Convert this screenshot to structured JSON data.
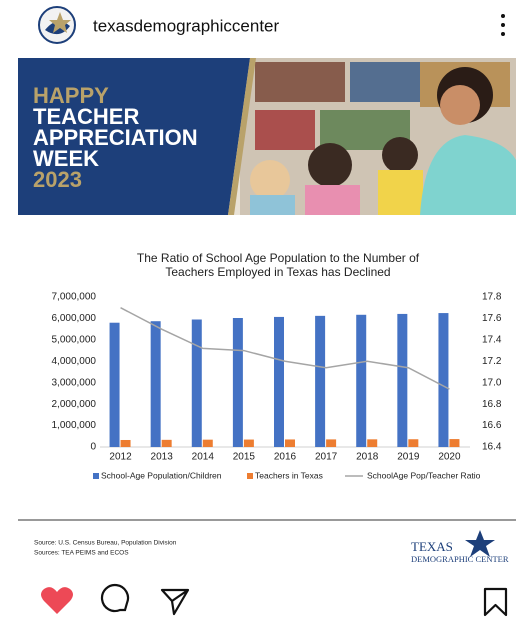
{
  "header": {
    "username": "texasdemographiccenter"
  },
  "banner": {
    "lines": [
      "HAPPY",
      "TEACHER",
      "APPRECIATION",
      "WEEK",
      "2023"
    ]
  },
  "chart_data": {
    "type": "bar",
    "title": "The Ratio of School Age Population to the Number of Teachers Employed in Texas has Declined",
    "categories": [
      "2012",
      "2013",
      "2014",
      "2015",
      "2016",
      "2017",
      "2018",
      "2019",
      "2020"
    ],
    "series": [
      {
        "name": "School-Age Population/Children",
        "color": "#4472c4",
        "values": [
          5800000,
          5870000,
          5950000,
          6020000,
          6070000,
          6120000,
          6170000,
          6210000,
          6250000
        ]
      },
      {
        "name": "Teachers in Texas",
        "color": "#ed7d31",
        "values": [
          327000,
          334000,
          342000,
          347000,
          352000,
          355000,
          358000,
          362000,
          370000
        ]
      },
      {
        "name": "SchoolAge Pop/Teacher Ratio",
        "color": "#a5a5a5",
        "type": "line",
        "axis": "y2",
        "values": [
          17.7,
          17.5,
          17.32,
          17.3,
          17.2,
          17.14,
          17.2,
          17.14,
          16.94
        ]
      }
    ],
    "ylim": [
      0,
      7000000
    ],
    "yticks": [
      0,
      {
        "value": 1000000,
        "label": "1,000,000"
      },
      {
        "value": 2000000,
        "label": "2,000,000"
      },
      {
        "value": 3000000,
        "label": "3,000,000"
      },
      {
        "value": 4000000,
        "label": "4,000,000"
      },
      {
        "value": 5000000,
        "label": "5,000,000"
      },
      {
        "value": 6000000,
        "label": "6,000,000"
      },
      {
        "value": 7000000,
        "label": "7,000,000"
      }
    ],
    "y2lim": [
      16.4,
      17.8
    ],
    "y2ticks": [
      16.4,
      16.6,
      16.8,
      {
        "value": 17,
        "label": "17.0"
      },
      17.2,
      17.4,
      17.6,
      17.8
    ],
    "grid": false,
    "legend": "bottom"
  },
  "footer": {
    "sources": [
      "Source: U.S. Census Bureau, Population Division",
      "Sources: TEA PEIMS and ECOS"
    ],
    "logo": [
      "TEXAS",
      "DEMOGRAPHIC CENTER"
    ]
  }
}
